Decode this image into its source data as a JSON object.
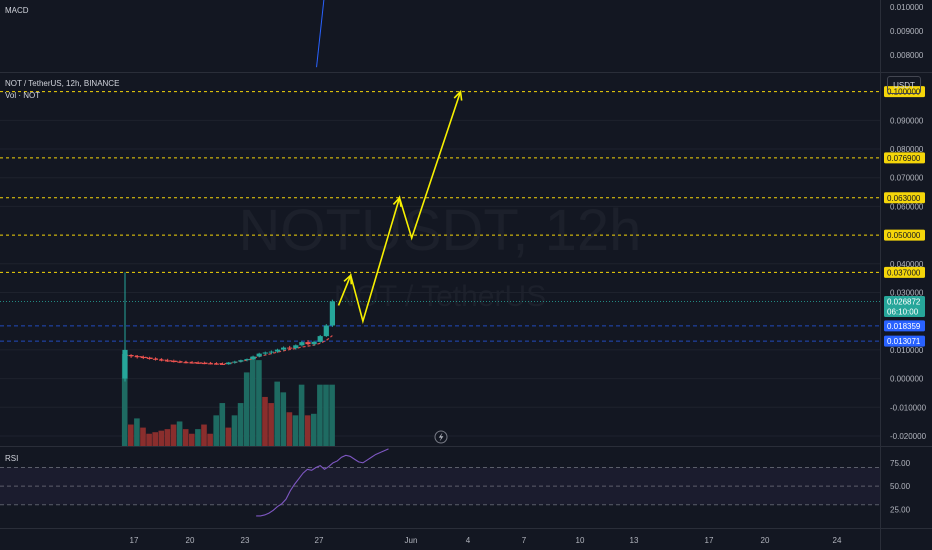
{
  "header": {
    "macd_label": "MACD",
    "symbol_title": "NOT / TetherUS, 12h, BINANCE",
    "volume_label": "Vol · NOT",
    "rsi_label": "RSI",
    "currency_button": "USDT",
    "watermark_main": "NOTUSDT, 12h",
    "watermark_sub": "NOT / TetherUS"
  },
  "price_tags": [
    {
      "label": "0.100000",
      "style": "yellow"
    },
    {
      "label": "0.076900",
      "style": "yellow"
    },
    {
      "label": "0.063000",
      "style": "yellow"
    },
    {
      "label": "0.050000",
      "style": "yellow"
    },
    {
      "label": "0.037000",
      "style": "yellow"
    },
    {
      "label": "0.026872",
      "sub": "06:10:00",
      "style": "teal"
    },
    {
      "label": "0.018359",
      "style": "blue"
    },
    {
      "label": "0.013071",
      "style": "blue"
    }
  ],
  "colors": {
    "background": "#131722",
    "up": "#26a69a",
    "down": "#ef5350",
    "vol_up": "#1e6b62",
    "vol_down": "#8a2e2d",
    "level": "#f5d60a",
    "projection": "#f7f000",
    "blue_tag": "#2962ff",
    "macd": "#2962ff",
    "rsi_line": "#7e57c2",
    "ma": "#ef5350",
    "grid": "#1e222d",
    "text": "#b2b5be"
  },
  "chart_data": [
    {
      "type": "candlestick",
      "title": "NOT / TetherUS, 12h, BINANCE",
      "x_ticks": [
        "17",
        "20",
        "23",
        "27",
        "Jun",
        "4",
        "7",
        "10",
        "13",
        "17",
        "20",
        "24"
      ],
      "y_ticks": [
        "0.090000",
        "0.080000",
        "0.070000",
        "0.060000",
        "0.040000",
        "0.030000",
        "0.010000",
        "0.000000",
        "-0.010000",
        "-0.020000"
      ],
      "ylim": [
        -0.0235,
        0.1065
      ],
      "candles": [
        {
          "o": 0.0,
          "h": 0.037,
          "l": -0.001,
          "c": 0.01
        },
        {
          "o": 0.0082,
          "h": 0.0085,
          "l": 0.0072,
          "c": 0.0078
        },
        {
          "o": 0.0078,
          "h": 0.0082,
          "l": 0.007,
          "c": 0.0075
        },
        {
          "o": 0.0075,
          "h": 0.008,
          "l": 0.0068,
          "c": 0.0072
        },
        {
          "o": 0.0072,
          "h": 0.0076,
          "l": 0.0066,
          "c": 0.0069
        },
        {
          "o": 0.0069,
          "h": 0.0074,
          "l": 0.0063,
          "c": 0.0066
        },
        {
          "o": 0.0066,
          "h": 0.0071,
          "l": 0.006,
          "c": 0.0063
        },
        {
          "o": 0.0063,
          "h": 0.0069,
          "l": 0.0058,
          "c": 0.0061
        },
        {
          "o": 0.0061,
          "h": 0.0066,
          "l": 0.0056,
          "c": 0.0059
        },
        {
          "o": 0.0059,
          "h": 0.0063,
          "l": 0.0054,
          "c": 0.0057
        },
        {
          "o": 0.0057,
          "h": 0.0062,
          "l": 0.0053,
          "c": 0.0056
        },
        {
          "o": 0.0056,
          "h": 0.0061,
          "l": 0.0052,
          "c": 0.0055
        },
        {
          "o": 0.0055,
          "h": 0.006,
          "l": 0.0051,
          "c": 0.0054
        },
        {
          "o": 0.0054,
          "h": 0.0059,
          "l": 0.005,
          "c": 0.0053
        },
        {
          "o": 0.0053,
          "h": 0.0058,
          "l": 0.0049,
          "c": 0.0052
        },
        {
          "o": 0.0052,
          "h": 0.0057,
          "l": 0.0048,
          "c": 0.0051
        },
        {
          "o": 0.0051,
          "h": 0.0056,
          "l": 0.0048,
          "c": 0.005
        },
        {
          "o": 0.005,
          "h": 0.0058,
          "l": 0.0048,
          "c": 0.0056
        },
        {
          "o": 0.0056,
          "h": 0.0062,
          "l": 0.0052,
          "c": 0.0059
        },
        {
          "o": 0.0059,
          "h": 0.0066,
          "l": 0.0056,
          "c": 0.0064
        },
        {
          "o": 0.0064,
          "h": 0.007,
          "l": 0.006,
          "c": 0.0068
        },
        {
          "o": 0.0068,
          "h": 0.008,
          "l": 0.0065,
          "c": 0.0077
        },
        {
          "o": 0.0077,
          "h": 0.009,
          "l": 0.0074,
          "c": 0.0087
        },
        {
          "o": 0.0087,
          "h": 0.0094,
          "l": 0.0082,
          "c": 0.0091
        },
        {
          "o": 0.0091,
          "h": 0.0098,
          "l": 0.0085,
          "c": 0.0094
        },
        {
          "o": 0.0094,
          "h": 0.0104,
          "l": 0.009,
          "c": 0.0101
        },
        {
          "o": 0.0101,
          "h": 0.0112,
          "l": 0.0097,
          "c": 0.0108
        },
        {
          "o": 0.0108,
          "h": 0.0114,
          "l": 0.0102,
          "c": 0.0106
        },
        {
          "o": 0.0106,
          "h": 0.0119,
          "l": 0.0101,
          "c": 0.0116
        },
        {
          "o": 0.0116,
          "h": 0.013,
          "l": 0.0112,
          "c": 0.0127
        },
        {
          "o": 0.0127,
          "h": 0.0134,
          "l": 0.0116,
          "c": 0.012
        },
        {
          "o": 0.012,
          "h": 0.0132,
          "l": 0.0114,
          "c": 0.0128
        },
        {
          "o": 0.0128,
          "h": 0.0152,
          "l": 0.0125,
          "c": 0.0148
        },
        {
          "o": 0.0148,
          "h": 0.019,
          "l": 0.0145,
          "c": 0.0185
        },
        {
          "o": 0.0185,
          "h": 0.0275,
          "l": 0.018,
          "c": 0.0269
        }
      ],
      "volume": [
        60,
        14,
        18,
        12,
        8,
        9,
        10,
        11,
        14,
        16,
        11,
        8,
        11,
        14,
        8,
        20,
        28,
        12,
        20,
        28,
        48,
        58,
        56,
        32,
        28,
        42,
        35,
        22,
        20,
        40,
        20,
        21,
        40,
        40,
        40
      ],
      "volume_up": [
        true,
        false,
        true,
        false,
        false,
        false,
        false,
        false,
        false,
        true,
        false,
        false,
        true,
        false,
        false,
        true,
        true,
        false,
        true,
        true,
        true,
        true,
        true,
        false,
        false,
        true,
        true,
        false,
        true,
        true,
        false,
        true,
        true,
        true,
        true
      ],
      "ma": [
        0.0082,
        0.008,
        0.0078,
        0.0075,
        0.0072,
        0.0069,
        0.0066,
        0.0063,
        0.0061,
        0.0059,
        0.0057,
        0.0056,
        0.0055,
        0.0054,
        0.0053,
        0.0052,
        0.0052,
        0.0053,
        0.0056,
        0.006,
        0.0064,
        0.007,
        0.0077,
        0.0082,
        0.0087,
        0.0092,
        0.0097,
        0.0101,
        0.0105,
        0.011,
        0.0113,
        0.0117,
        0.0123,
        0.0133,
        0.015
      ],
      "levels": [
        0.1,
        0.0769,
        0.063,
        0.05,
        0.037
      ],
      "guide_levels": [
        0.018359,
        0.013071
      ],
      "last_price": 0.026872,
      "projection": [
        {
          "t": 35,
          "price": 0.0255
        },
        {
          "t": 37,
          "price": 0.036
        },
        {
          "t": 39,
          "price": 0.02
        },
        {
          "t": 45,
          "price": 0.063
        },
        {
          "t": 47,
          "price": 0.049
        },
        {
          "t": 55,
          "price": 0.1
        }
      ]
    },
    {
      "type": "line",
      "title": "MACD",
      "y_ticks": [
        "0.010000",
        "0.009000",
        "0.008000"
      ],
      "ylim": [
        0.0073,
        0.0103
      ],
      "x": [
        31.4,
        32.6
      ],
      "values": [
        0.0075,
        0.0103
      ]
    },
    {
      "type": "line",
      "title": "RSI",
      "y_ticks": [
        "75.00",
        "50.00",
        "25.00"
      ],
      "ylim": [
        5,
        92
      ],
      "levels": [
        70,
        50,
        30
      ],
      "values": [
        18,
        18,
        19,
        21,
        24,
        28,
        31,
        36,
        45,
        52,
        58,
        64,
        68,
        67,
        70,
        72,
        68,
        71,
        75,
        77,
        81,
        83,
        82,
        79,
        76,
        75,
        78,
        81,
        84,
        86,
        88,
        90
      ]
    }
  ]
}
